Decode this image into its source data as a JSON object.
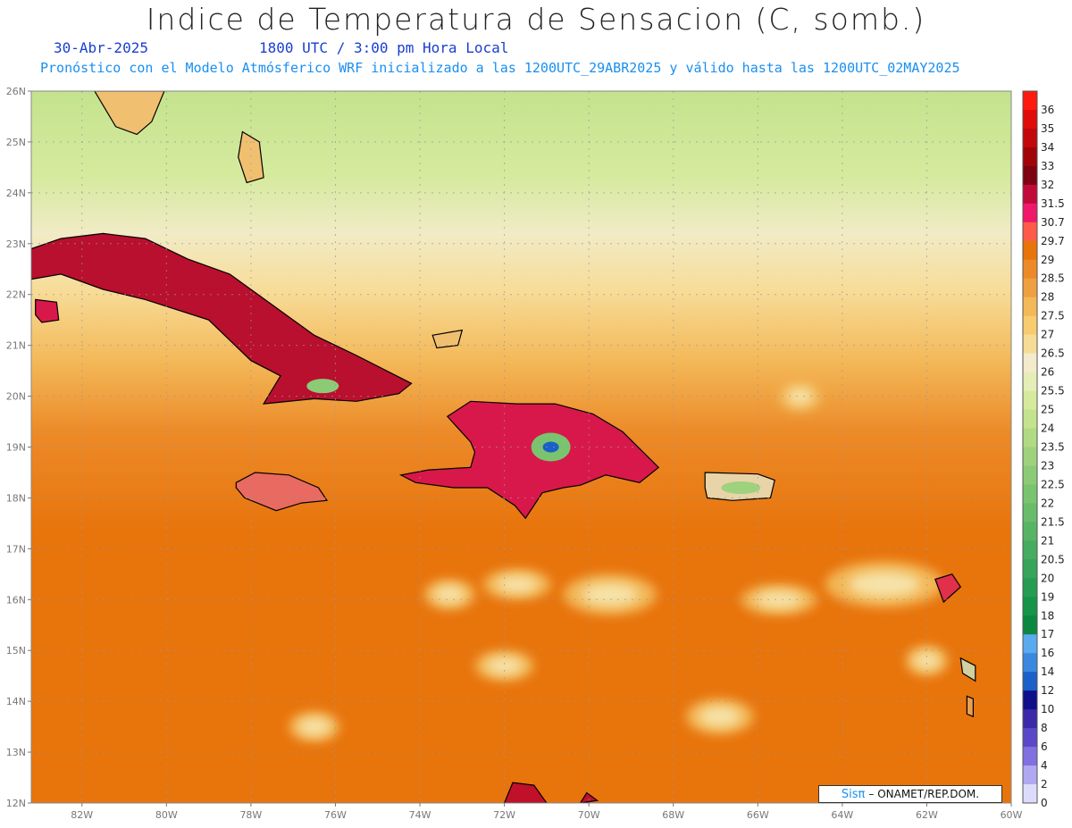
{
  "header": {
    "title": "Indice de Temperatura de Sensacion (C, somb.)",
    "date": "30-Abr-2025",
    "valid_time": "1800 UTC / 3:00 pm Hora Local",
    "subtitle": "Pronóstico con el Modelo Atmósferico WRF inicializado a las 1200UTC_29ABR2025 y válido hasta las  1200UTC_02MAY2025"
  },
  "map": {
    "lon_range": [
      -83.2,
      -60
    ],
    "lat_range": [
      12,
      26
    ],
    "lon_ticks": [
      {
        "value": -82,
        "label": "82W"
      },
      {
        "value": -80,
        "label": "80W"
      },
      {
        "value": -78,
        "label": "78W"
      },
      {
        "value": -76,
        "label": "76W"
      },
      {
        "value": -74,
        "label": "74W"
      },
      {
        "value": -72,
        "label": "72W"
      },
      {
        "value": -70,
        "label": "70W"
      },
      {
        "value": -68,
        "label": "68W"
      },
      {
        "value": -66,
        "label": "66W"
      },
      {
        "value": -64,
        "label": "64W"
      },
      {
        "value": -62,
        "label": "62W"
      },
      {
        "value": -60,
        "label": "60W"
      }
    ],
    "lat_ticks": [
      {
        "value": 26,
        "label": "26N"
      },
      {
        "value": 25,
        "label": "25N"
      },
      {
        "value": 24,
        "label": "24N"
      },
      {
        "value": 23,
        "label": "23N"
      },
      {
        "value": 22,
        "label": "22N"
      },
      {
        "value": 21,
        "label": "21N"
      },
      {
        "value": 20,
        "label": "20N"
      },
      {
        "value": 19,
        "label": "19N"
      },
      {
        "value": 18,
        "label": "18N"
      },
      {
        "value": 17,
        "label": "17N"
      },
      {
        "value": 16,
        "label": "16N"
      },
      {
        "value": 15,
        "label": "15N"
      },
      {
        "value": 14,
        "label": "14N"
      },
      {
        "value": 13,
        "label": "13N"
      },
      {
        "value": 12,
        "label": "12N"
      }
    ],
    "grid": true,
    "land_masses": [
      {
        "name": "Cuba",
        "points": [
          [
            -83.2,
            22.9
          ],
          [
            -82.5,
            23.1
          ],
          [
            -81.5,
            23.2
          ],
          [
            -80.5,
            23.1
          ],
          [
            -79.5,
            22.7
          ],
          [
            -78.5,
            22.4
          ],
          [
            -77.5,
            21.8
          ],
          [
            -76.5,
            21.2
          ],
          [
            -75.5,
            20.8
          ],
          [
            -74.2,
            20.25
          ],
          [
            -74.5,
            20.05
          ],
          [
            -75.5,
            19.9
          ],
          [
            -76.5,
            19.95
          ],
          [
            -77.7,
            19.85
          ],
          [
            -77.3,
            20.4
          ],
          [
            -78.0,
            20.7
          ],
          [
            -79.0,
            21.5
          ],
          [
            -80.5,
            21.9
          ],
          [
            -81.5,
            22.1
          ],
          [
            -82.5,
            22.4
          ],
          [
            -83.2,
            22.3
          ]
        ]
      },
      {
        "name": "Isla de la Juventud",
        "points": [
          [
            -83.1,
            21.9
          ],
          [
            -82.6,
            21.85
          ],
          [
            -82.55,
            21.5
          ],
          [
            -82.95,
            21.45
          ],
          [
            -83.1,
            21.6
          ]
        ]
      },
      {
        "name": "Hispaniola",
        "points": [
          [
            -74.45,
            18.45
          ],
          [
            -73.8,
            18.55
          ],
          [
            -72.8,
            18.6
          ],
          [
            -72.7,
            18.9
          ],
          [
            -72.8,
            19.1
          ],
          [
            -73.35,
            19.6
          ],
          [
            -72.8,
            19.9
          ],
          [
            -71.7,
            19.85
          ],
          [
            -70.8,
            19.85
          ],
          [
            -69.9,
            19.65
          ],
          [
            -69.2,
            19.3
          ],
          [
            -68.35,
            18.6
          ],
          [
            -68.8,
            18.3
          ],
          [
            -69.6,
            18.45
          ],
          [
            -70.2,
            18.25
          ],
          [
            -70.6,
            18.2
          ],
          [
            -71.1,
            18.1
          ],
          [
            -71.5,
            17.6
          ],
          [
            -71.75,
            17.85
          ],
          [
            -72.4,
            18.2
          ],
          [
            -73.2,
            18.2
          ],
          [
            -74.1,
            18.3
          ]
        ]
      },
      {
        "name": "Jamaica",
        "points": [
          [
            -78.35,
            18.3
          ],
          [
            -77.9,
            18.5
          ],
          [
            -77.1,
            18.45
          ],
          [
            -76.4,
            18.2
          ],
          [
            -76.2,
            17.95
          ],
          [
            -76.8,
            17.9
          ],
          [
            -77.4,
            17.75
          ],
          [
            -78.15,
            18.0
          ],
          [
            -78.35,
            18.2
          ]
        ]
      },
      {
        "name": "Puerto Rico",
        "points": [
          [
            -67.25,
            18.5
          ],
          [
            -66.0,
            18.47
          ],
          [
            -65.6,
            18.35
          ],
          [
            -65.7,
            18.0
          ],
          [
            -66.6,
            17.95
          ],
          [
            -67.2,
            18.0
          ],
          [
            -67.25,
            18.2
          ]
        ]
      },
      {
        "name": "Venezuela coast",
        "points": [
          [
            -72.0,
            12.0
          ],
          [
            -71.8,
            12.4
          ],
          [
            -71.3,
            12.35
          ],
          [
            -71.0,
            12.0
          ]
        ]
      },
      {
        "name": "Paraguana",
        "points": [
          [
            -70.2,
            12.0
          ],
          [
            -70.05,
            12.2
          ],
          [
            -69.8,
            12.05
          ]
        ]
      },
      {
        "name": "Florida",
        "points": [
          [
            -81.7,
            26.0
          ],
          [
            -81.2,
            25.3
          ],
          [
            -80.7,
            25.15
          ],
          [
            -80.35,
            25.4
          ],
          [
            -80.05,
            26.0
          ]
        ]
      },
      {
        "name": "Andros",
        "points": [
          [
            -78.2,
            25.2
          ],
          [
            -77.8,
            25.0
          ],
          [
            -77.7,
            24.3
          ],
          [
            -78.1,
            24.2
          ],
          [
            -78.3,
            24.7
          ]
        ]
      },
      {
        "name": "Inagua",
        "points": [
          [
            -73.7,
            21.2
          ],
          [
            -73.0,
            21.3
          ],
          [
            -73.1,
            21.0
          ],
          [
            -73.6,
            20.95
          ]
        ]
      },
      {
        "name": "Guadeloupe",
        "points": [
          [
            -61.8,
            16.4
          ],
          [
            -61.4,
            16.5
          ],
          [
            -61.2,
            16.25
          ],
          [
            -61.6,
            15.95
          ]
        ]
      },
      {
        "name": "Martinique",
        "points": [
          [
            -61.2,
            14.85
          ],
          [
            -60.85,
            14.7
          ],
          [
            -60.85,
            14.4
          ],
          [
            -61.15,
            14.55
          ]
        ]
      },
      {
        "name": "St Lucia",
        "points": [
          [
            -61.05,
            14.1
          ],
          [
            -60.9,
            14.05
          ],
          [
            -60.9,
            13.7
          ],
          [
            -61.05,
            13.75
          ]
        ]
      }
    ],
    "heat_spots": [
      {
        "lon": -63.0,
        "lat": 16.3,
        "rx": 1.4,
        "ry": 0.45,
        "level": "cool"
      },
      {
        "lon": -69.5,
        "lat": 16.1,
        "rx": 1.1,
        "ry": 0.4,
        "level": "cool"
      },
      {
        "lon": -71.7,
        "lat": 16.3,
        "rx": 0.8,
        "ry": 0.3,
        "level": "cool"
      },
      {
        "lon": -65.5,
        "lat": 16.0,
        "rx": 0.9,
        "ry": 0.3,
        "level": "cool"
      },
      {
        "lon": -73.3,
        "lat": 16.1,
        "rx": 0.6,
        "ry": 0.3,
        "level": "cool"
      },
      {
        "lon": -65.0,
        "lat": 20.0,
        "rx": 0.5,
        "ry": 0.3,
        "level": "cool"
      },
      {
        "lon": -72.0,
        "lat": 14.7,
        "rx": 0.7,
        "ry": 0.3,
        "level": "cool"
      },
      {
        "lon": -76.5,
        "lat": 13.5,
        "rx": 0.6,
        "ry": 0.3,
        "level": "cool"
      },
      {
        "lon": -62.0,
        "lat": 14.8,
        "rx": 0.5,
        "ry": 0.3,
        "level": "cool"
      },
      {
        "lon": -66.9,
        "lat": 13.7,
        "rx": 0.8,
        "ry": 0.35,
        "level": "cool"
      }
    ]
  },
  "colorbar": {
    "levels": [
      {
        "label": "36",
        "color": "#ff1a10"
      },
      {
        "label": "35",
        "color": "#e00c0c"
      },
      {
        "label": "34",
        "color": "#c2080b"
      },
      {
        "label": "33",
        "color": "#a00409"
      },
      {
        "label": "32",
        "color": "#7d0212"
      },
      {
        "label": "31.5",
        "color": "#c20a3a"
      },
      {
        "label": "30.7",
        "color": "#f0186a"
      },
      {
        "label": "29.7",
        "color": "#ff5a4a"
      },
      {
        "label": "29",
        "color": "#e8740c"
      },
      {
        "label": "28.5",
        "color": "#ec8a28"
      },
      {
        "label": "28",
        "color": "#efa040"
      },
      {
        "label": "27.5",
        "color": "#f3b858"
      },
      {
        "label": "27",
        "color": "#f6cc6e"
      },
      {
        "label": "26.5",
        "color": "#f7dc98"
      },
      {
        "label": "26",
        "color": "#f3ebcc"
      },
      {
        "label": "25.5",
        "color": "#e6eeb8"
      },
      {
        "label": "25",
        "color": "#d6ea9e"
      },
      {
        "label": "24",
        "color": "#c4e38e"
      },
      {
        "label": "23.5",
        "color": "#b0da84"
      },
      {
        "label": "23",
        "color": "#9ed27c"
      },
      {
        "label": "22.5",
        "color": "#8ccb76"
      },
      {
        "label": "22",
        "color": "#7ac470"
      },
      {
        "label": "21.5",
        "color": "#68bc6a"
      },
      {
        "label": "21",
        "color": "#56b464"
      },
      {
        "label": "20.5",
        "color": "#46ac60"
      },
      {
        "label": "20",
        "color": "#36a45a"
      },
      {
        "label": "19",
        "color": "#269c52"
      },
      {
        "label": "18",
        "color": "#16944a"
      },
      {
        "label": "17",
        "color": "#0a8842"
      },
      {
        "label": "16",
        "color": "#5aaaf0"
      },
      {
        "label": "14",
        "color": "#3a88e0"
      },
      {
        "label": "12",
        "color": "#1a60c8"
      },
      {
        "label": "10",
        "color": "#10108a"
      },
      {
        "label": "8",
        "color": "#3a2aa8"
      },
      {
        "label": "6",
        "color": "#5a48c8"
      },
      {
        "label": "4",
        "color": "#8070e0"
      },
      {
        "label": "2",
        "color": "#b0a8f0"
      },
      {
        "label": "0",
        "color": "#dcdcfa"
      }
    ]
  },
  "credit": {
    "sis": "Sisπ",
    "text": "– ONAMET/REP.DOM."
  }
}
